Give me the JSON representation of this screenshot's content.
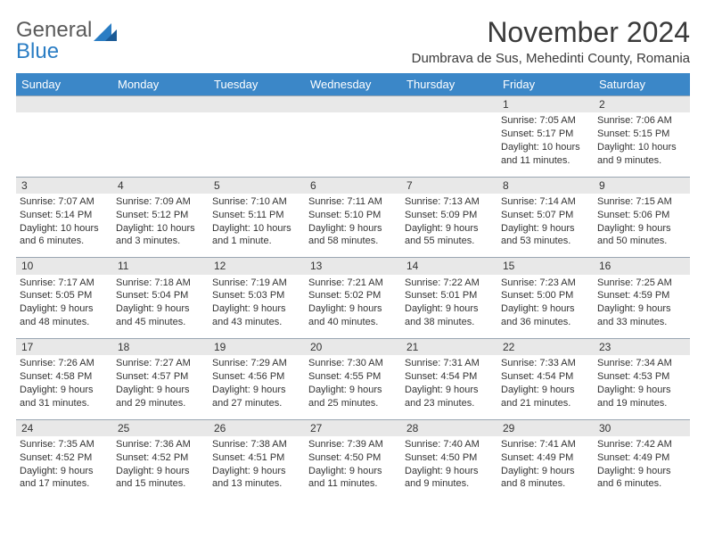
{
  "brand": {
    "general": "General",
    "blue": "Blue"
  },
  "title": "November 2024",
  "location": "Dumbrava de Sus, Mehedinti County, Romania",
  "header_bg": "#3b87c8",
  "header_fg": "#ffffff",
  "grid_border": "#9aa6b2",
  "daynum_bg": "#e8e8e8",
  "dayNames": [
    "Sunday",
    "Monday",
    "Tuesday",
    "Wednesday",
    "Thursday",
    "Friday",
    "Saturday"
  ],
  "weeks": [
    [
      null,
      null,
      null,
      null,
      null,
      {
        "n": "1",
        "sr": "Sunrise: 7:05 AM",
        "ss": "Sunset: 5:17 PM",
        "dl1": "Daylight: 10 hours",
        "dl2": "and 11 minutes."
      },
      {
        "n": "2",
        "sr": "Sunrise: 7:06 AM",
        "ss": "Sunset: 5:15 PM",
        "dl1": "Daylight: 10 hours",
        "dl2": "and 9 minutes."
      }
    ],
    [
      {
        "n": "3",
        "sr": "Sunrise: 7:07 AM",
        "ss": "Sunset: 5:14 PM",
        "dl1": "Daylight: 10 hours",
        "dl2": "and 6 minutes."
      },
      {
        "n": "4",
        "sr": "Sunrise: 7:09 AM",
        "ss": "Sunset: 5:12 PM",
        "dl1": "Daylight: 10 hours",
        "dl2": "and 3 minutes."
      },
      {
        "n": "5",
        "sr": "Sunrise: 7:10 AM",
        "ss": "Sunset: 5:11 PM",
        "dl1": "Daylight: 10 hours",
        "dl2": "and 1 minute."
      },
      {
        "n": "6",
        "sr": "Sunrise: 7:11 AM",
        "ss": "Sunset: 5:10 PM",
        "dl1": "Daylight: 9 hours",
        "dl2": "and 58 minutes."
      },
      {
        "n": "7",
        "sr": "Sunrise: 7:13 AM",
        "ss": "Sunset: 5:09 PM",
        "dl1": "Daylight: 9 hours",
        "dl2": "and 55 minutes."
      },
      {
        "n": "8",
        "sr": "Sunrise: 7:14 AM",
        "ss": "Sunset: 5:07 PM",
        "dl1": "Daylight: 9 hours",
        "dl2": "and 53 minutes."
      },
      {
        "n": "9",
        "sr": "Sunrise: 7:15 AM",
        "ss": "Sunset: 5:06 PM",
        "dl1": "Daylight: 9 hours",
        "dl2": "and 50 minutes."
      }
    ],
    [
      {
        "n": "10",
        "sr": "Sunrise: 7:17 AM",
        "ss": "Sunset: 5:05 PM",
        "dl1": "Daylight: 9 hours",
        "dl2": "and 48 minutes."
      },
      {
        "n": "11",
        "sr": "Sunrise: 7:18 AM",
        "ss": "Sunset: 5:04 PM",
        "dl1": "Daylight: 9 hours",
        "dl2": "and 45 minutes."
      },
      {
        "n": "12",
        "sr": "Sunrise: 7:19 AM",
        "ss": "Sunset: 5:03 PM",
        "dl1": "Daylight: 9 hours",
        "dl2": "and 43 minutes."
      },
      {
        "n": "13",
        "sr": "Sunrise: 7:21 AM",
        "ss": "Sunset: 5:02 PM",
        "dl1": "Daylight: 9 hours",
        "dl2": "and 40 minutes."
      },
      {
        "n": "14",
        "sr": "Sunrise: 7:22 AM",
        "ss": "Sunset: 5:01 PM",
        "dl1": "Daylight: 9 hours",
        "dl2": "and 38 minutes."
      },
      {
        "n": "15",
        "sr": "Sunrise: 7:23 AM",
        "ss": "Sunset: 5:00 PM",
        "dl1": "Daylight: 9 hours",
        "dl2": "and 36 minutes."
      },
      {
        "n": "16",
        "sr": "Sunrise: 7:25 AM",
        "ss": "Sunset: 4:59 PM",
        "dl1": "Daylight: 9 hours",
        "dl2": "and 33 minutes."
      }
    ],
    [
      {
        "n": "17",
        "sr": "Sunrise: 7:26 AM",
        "ss": "Sunset: 4:58 PM",
        "dl1": "Daylight: 9 hours",
        "dl2": "and 31 minutes."
      },
      {
        "n": "18",
        "sr": "Sunrise: 7:27 AM",
        "ss": "Sunset: 4:57 PM",
        "dl1": "Daylight: 9 hours",
        "dl2": "and 29 minutes."
      },
      {
        "n": "19",
        "sr": "Sunrise: 7:29 AM",
        "ss": "Sunset: 4:56 PM",
        "dl1": "Daylight: 9 hours",
        "dl2": "and 27 minutes."
      },
      {
        "n": "20",
        "sr": "Sunrise: 7:30 AM",
        "ss": "Sunset: 4:55 PM",
        "dl1": "Daylight: 9 hours",
        "dl2": "and 25 minutes."
      },
      {
        "n": "21",
        "sr": "Sunrise: 7:31 AM",
        "ss": "Sunset: 4:54 PM",
        "dl1": "Daylight: 9 hours",
        "dl2": "and 23 minutes."
      },
      {
        "n": "22",
        "sr": "Sunrise: 7:33 AM",
        "ss": "Sunset: 4:54 PM",
        "dl1": "Daylight: 9 hours",
        "dl2": "and 21 minutes."
      },
      {
        "n": "23",
        "sr": "Sunrise: 7:34 AM",
        "ss": "Sunset: 4:53 PM",
        "dl1": "Daylight: 9 hours",
        "dl2": "and 19 minutes."
      }
    ],
    [
      {
        "n": "24",
        "sr": "Sunrise: 7:35 AM",
        "ss": "Sunset: 4:52 PM",
        "dl1": "Daylight: 9 hours",
        "dl2": "and 17 minutes."
      },
      {
        "n": "25",
        "sr": "Sunrise: 7:36 AM",
        "ss": "Sunset: 4:52 PM",
        "dl1": "Daylight: 9 hours",
        "dl2": "and 15 minutes."
      },
      {
        "n": "26",
        "sr": "Sunrise: 7:38 AM",
        "ss": "Sunset: 4:51 PM",
        "dl1": "Daylight: 9 hours",
        "dl2": "and 13 minutes."
      },
      {
        "n": "27",
        "sr": "Sunrise: 7:39 AM",
        "ss": "Sunset: 4:50 PM",
        "dl1": "Daylight: 9 hours",
        "dl2": "and 11 minutes."
      },
      {
        "n": "28",
        "sr": "Sunrise: 7:40 AM",
        "ss": "Sunset: 4:50 PM",
        "dl1": "Daylight: 9 hours",
        "dl2": "and 9 minutes."
      },
      {
        "n": "29",
        "sr": "Sunrise: 7:41 AM",
        "ss": "Sunset: 4:49 PM",
        "dl1": "Daylight: 9 hours",
        "dl2": "and 8 minutes."
      },
      {
        "n": "30",
        "sr": "Sunrise: 7:42 AM",
        "ss": "Sunset: 4:49 PM",
        "dl1": "Daylight: 9 hours",
        "dl2": "and 6 minutes."
      }
    ]
  ]
}
